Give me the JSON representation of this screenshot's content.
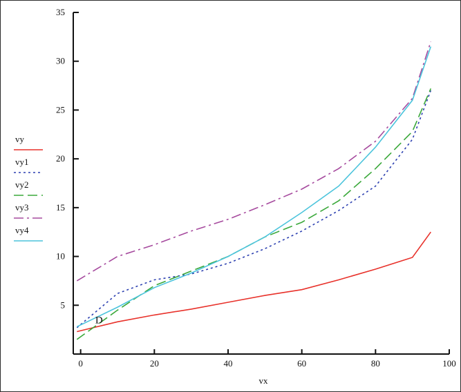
{
  "chart_data": {
    "type": "line",
    "xlabel": "vx",
    "ylabel": "",
    "xlim": [
      -2,
      100
    ],
    "ylim": [
      0,
      35
    ],
    "xticks": [
      "0",
      "20",
      "40",
      "60",
      "80",
      "100"
    ],
    "xtick_values": [
      0,
      20,
      40,
      60,
      80,
      100
    ],
    "yticks": [
      "5",
      "10",
      "15",
      "20",
      "25",
      "30",
      "35"
    ],
    "ytick_values": [
      5,
      10,
      15,
      20,
      25,
      30,
      35
    ],
    "grid": false,
    "legend_position": "left",
    "annotations": [
      {
        "text": "D",
        "x": 5,
        "y": 3.5
      }
    ],
    "series": [
      {
        "name": "vy",
        "color": "#e8312a",
        "dash": "solid",
        "points": [
          [
            -1,
            2.3
          ],
          [
            10,
            3.3
          ],
          [
            20,
            4.0
          ],
          [
            30,
            4.6
          ],
          [
            40,
            5.3
          ],
          [
            50,
            6.0
          ],
          [
            60,
            6.6
          ],
          [
            70,
            7.6
          ],
          [
            80,
            8.7
          ],
          [
            90,
            9.9
          ],
          [
            95,
            12.5
          ]
        ]
      },
      {
        "name": "vy1",
        "color": "#2b3fb0",
        "dash": "dot",
        "points": [
          [
            -1,
            2.7
          ],
          [
            10,
            6.2
          ],
          [
            20,
            7.6
          ],
          [
            30,
            8.2
          ],
          [
            40,
            9.3
          ],
          [
            50,
            10.8
          ],
          [
            60,
            12.6
          ],
          [
            70,
            14.7
          ],
          [
            80,
            17.2
          ],
          [
            90,
            22.0
          ],
          [
            95,
            27.0
          ]
        ]
      },
      {
        "name": "vy2",
        "color": "#3aa83a",
        "dash": "longdash",
        "points": [
          [
            -1,
            1.5
          ],
          [
            10,
            4.5
          ],
          [
            20,
            7.0
          ],
          [
            30,
            8.5
          ],
          [
            40,
            10.0
          ],
          [
            50,
            12.0
          ],
          [
            60,
            13.5
          ],
          [
            70,
            15.7
          ],
          [
            80,
            19.0
          ],
          [
            90,
            22.8
          ],
          [
            95,
            27.2
          ]
        ]
      },
      {
        "name": "vy3",
        "color": "#a64a9e",
        "dash": "dashdot",
        "points": [
          [
            -1,
            7.5
          ],
          [
            10,
            10.0
          ],
          [
            20,
            11.2
          ],
          [
            30,
            12.6
          ],
          [
            40,
            13.8
          ],
          [
            50,
            15.3
          ],
          [
            60,
            16.9
          ],
          [
            70,
            19.0
          ],
          [
            80,
            21.8
          ],
          [
            90,
            26.2
          ],
          [
            95,
            32.0
          ]
        ]
      },
      {
        "name": "vy4",
        "color": "#4cc4dc",
        "dash": "solid",
        "points": [
          [
            -1,
            2.8
          ],
          [
            10,
            4.8
          ],
          [
            20,
            6.8
          ],
          [
            30,
            8.3
          ],
          [
            40,
            10.0
          ],
          [
            50,
            12.0
          ],
          [
            60,
            14.5
          ],
          [
            70,
            17.2
          ],
          [
            80,
            21.2
          ],
          [
            90,
            26.0
          ],
          [
            95,
            31.5
          ]
        ]
      }
    ]
  }
}
